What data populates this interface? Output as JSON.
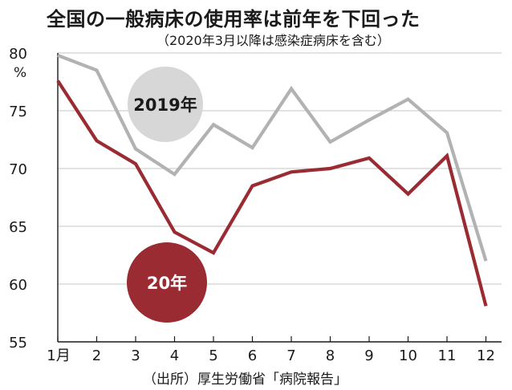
{
  "title": "全国の一般病床の使用率は前年を下回った",
  "subtitle": "（2020年3月以降は感染症病床を含む）",
  "source": "（出所）厚生労働省「病院報告」",
  "colors": {
    "series_2019": "#b1b2b4",
    "series_2020": "#9a2b33",
    "badge_2019_bg": "#d7d7d8",
    "grid": "#c4c4c4"
  },
  "chart_data": {
    "type": "line",
    "x": [
      "1月",
      "2",
      "3",
      "4",
      "5",
      "6",
      "7",
      "8",
      "9",
      "10",
      "11",
      "12"
    ],
    "ylabel": "%",
    "ylim": [
      55,
      80
    ],
    "yticks": [
      55,
      60,
      65,
      70,
      75,
      80
    ],
    "grid": "horizontal",
    "series": [
      {
        "name": "2019年",
        "color": "#b1b2b4",
        "values": [
          79.8,
          78.5,
          71.7,
          69.5,
          73.8,
          71.8,
          76.9,
          72.3,
          74.2,
          76.0,
          73.1,
          62.0
        ]
      },
      {
        "name": "20年",
        "color": "#9a2b33",
        "values": [
          77.6,
          72.4,
          70.4,
          64.5,
          62.7,
          68.5,
          69.7,
          70.0,
          70.9,
          67.8,
          71.1,
          58.1
        ]
      }
    ]
  }
}
